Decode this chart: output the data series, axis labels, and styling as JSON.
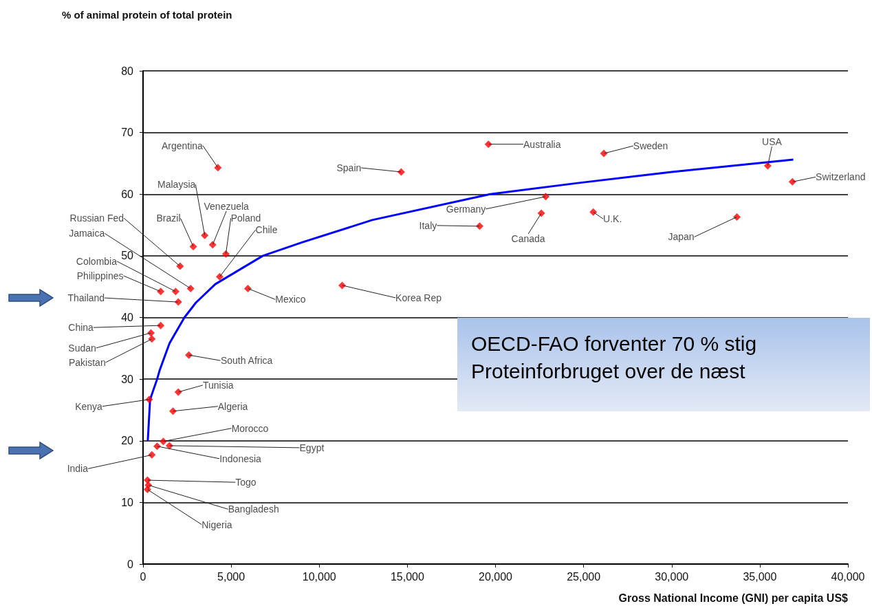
{
  "chart_data": {
    "type": "scatter",
    "ylabel": "% of animal protein of total protein",
    "xlabel": "Gross National Income (GNI) per capita US$",
    "xlim": [
      0,
      40000
    ],
    "xticks": [
      0,
      {
        "value": 5000,
        "label": "5,000"
      },
      {
        "value": 10000,
        "label": "10,000"
      },
      {
        "value": 15000,
        "label": "15,000"
      },
      {
        "value": 20000,
        "label": "20,000"
      },
      {
        "value": 25000,
        "label": "25,000"
      },
      {
        "value": 30000,
        "label": "30,000"
      },
      {
        "value": 35000,
        "label": "35,000"
      },
      {
        "value": 40000,
        "label": "40,000"
      }
    ],
    "ylim": [
      0,
      80
    ],
    "yticks": [
      0,
      10,
      20,
      30,
      40,
      50,
      60,
      70,
      80
    ],
    "grid": "y",
    "marker": "diamond",
    "series": [
      {
        "type": "scatter",
        "color": "#ff0000",
        "x": [
          4250,
          3500,
          2850,
          3950,
          4700,
          4350,
          2100,
          2700,
          1850,
          1000,
          2000,
          5950,
          1000,
          450,
          500,
          2600,
          350,
          2000,
          1700,
          1150,
          1500,
          800,
          500,
          250,
          300,
          250,
          11300,
          14650,
          19600,
          22850,
          19100,
          22600,
          26150,
          25550,
          35450,
          36850,
          33700
        ],
        "values": [
          64.3,
          53.3,
          51.5,
          51.8,
          50.3,
          46.6,
          48.3,
          44.7,
          44.2,
          44.2,
          42.5,
          44.7,
          38.7,
          37.5,
          36.5,
          33.9,
          26.7,
          27.9,
          24.8,
          19.9,
          19.2,
          19.1,
          17.7,
          13.6,
          12.8,
          12.1,
          45.2,
          63.6,
          68.1,
          59.6,
          54.8,
          56.9,
          66.6,
          57.1,
          64.6,
          62.0,
          56.3
        ]
      },
      {
        "type": "line",
        "color": "#0000ff",
        "marker": "none",
        "x": [
          270,
          400,
          800,
          940,
          1500,
          2350,
          3000,
          4100,
          6800,
          9050,
          13000,
          19700,
          24660,
          30000,
          36900
        ],
        "values": [
          20,
          26.7,
          30,
          31.4,
          35.8,
          40,
          42.4,
          45.4,
          50,
          52.2,
          55.8,
          60,
          61.8,
          63.6,
          65.6
        ]
      }
    ],
    "annotations": [
      {
        "text": "Argentina",
        "x": 4250,
        "y": 64.3
      },
      {
        "text": "Malaysia",
        "x": 3500,
        "y": 53.3
      },
      {
        "text": "Brazil",
        "x": 2850,
        "y": 51.5
      },
      {
        "text": "Venezuela",
        "x": 3950,
        "y": 51.8
      },
      {
        "text": "Poland",
        "x": 4700,
        "y": 50.3
      },
      {
        "text": "Chile",
        "x": 4350,
        "y": 46.6
      },
      {
        "text": "Russian Fed",
        "x": 2100,
        "y": 48.3
      },
      {
        "text": "Jamaica",
        "x": 2700,
        "y": 44.7
      },
      {
        "text": "Colombia",
        "x": 1850,
        "y": 44.2
      },
      {
        "text": "Philippines",
        "x": 1000,
        "y": 44.2
      },
      {
        "text": "Thailand",
        "x": 2000,
        "y": 42.5
      },
      {
        "text": "Mexico",
        "x": 5950,
        "y": 44.7
      },
      {
        "text": "China",
        "x": 1000,
        "y": 38.7
      },
      {
        "text": "Sudan",
        "x": 450,
        "y": 37.5
      },
      {
        "text": "Pakistan",
        "x": 500,
        "y": 36.5
      },
      {
        "text": "South Africa",
        "x": 2600,
        "y": 33.9
      },
      {
        "text": "Kenya",
        "x": 350,
        "y": 26.7
      },
      {
        "text": "Tunisia",
        "x": 2000,
        "y": 27.9
      },
      {
        "text": "Algeria",
        "x": 1700,
        "y": 24.8
      },
      {
        "text": "Morocco",
        "x": 1150,
        "y": 19.9
      },
      {
        "text": "Egypt",
        "x": 1500,
        "y": 19.2
      },
      {
        "text": "Indonesia",
        "x": 800,
        "y": 19.1
      },
      {
        "text": "India",
        "x": 500,
        "y": 17.7
      },
      {
        "text": "Togo",
        "x": 250,
        "y": 13.6
      },
      {
        "text": "Bangladesh",
        "x": 300,
        "y": 12.8
      },
      {
        "text": "Nigeria",
        "x": 250,
        "y": 12.1
      },
      {
        "text": "Korea Rep",
        "x": 11300,
        "y": 45.2
      },
      {
        "text": "Spain",
        "x": 14650,
        "y": 63.6
      },
      {
        "text": "Australia",
        "x": 19600,
        "y": 68.1
      },
      {
        "text": "Germany",
        "x": 22850,
        "y": 59.6
      },
      {
        "text": "Italy",
        "x": 19100,
        "y": 54.8
      },
      {
        "text": "Canada",
        "x": 22600,
        "y": 56.9
      },
      {
        "text": "Sweden",
        "x": 26150,
        "y": 66.6
      },
      {
        "text": "U.K.",
        "x": 25550,
        "y": 57.1
      },
      {
        "text": "USA",
        "x": 35450,
        "y": 64.6
      },
      {
        "text": "Switzerland",
        "x": 36850,
        "y": 62.0
      },
      {
        "text": "Japan",
        "x": 33700,
        "y": 56.3
      },
      "OECD-FAO forventer 70 % stig\nProteinforbruget over de næst"
    ]
  }
}
